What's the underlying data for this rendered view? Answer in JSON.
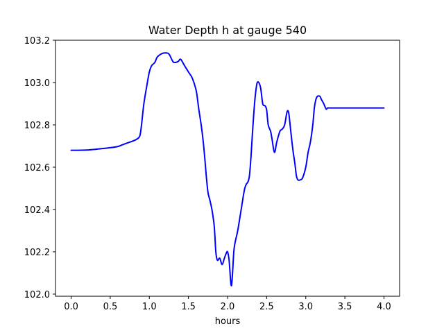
{
  "chart_data": {
    "type": "line",
    "title": "Water Depth h at gauge 540",
    "xlabel": "hours",
    "ylabel": "",
    "xlim": [
      -0.2,
      4.2
    ],
    "ylim": [
      101.99,
      103.2
    ],
    "xticks": [
      0.0,
      0.5,
      1.0,
      1.5,
      2.0,
      2.5,
      3.0,
      3.5,
      4.0
    ],
    "xtick_labels": [
      "0.0",
      "0.5",
      "1.0",
      "1.5",
      "2.0",
      "2.5",
      "3.0",
      "3.5",
      "4.0"
    ],
    "yticks": [
      102.0,
      102.2,
      102.4,
      102.6,
      102.8,
      103.0,
      103.2
    ],
    "ytick_labels": [
      "102.0",
      "102.2",
      "102.4",
      "102.6",
      "102.8",
      "103.0",
      "103.2"
    ],
    "grid": false,
    "legend": "none",
    "series": [
      {
        "color": "#0000ff",
        "x": [
          0.0,
          0.1,
          0.2,
          0.3,
          0.4,
          0.5,
          0.6,
          0.65,
          0.7,
          0.8,
          0.85,
          0.88,
          0.9,
          0.93,
          0.97,
          1.0,
          1.03,
          1.07,
          1.1,
          1.15,
          1.2,
          1.25,
          1.3,
          1.33,
          1.37,
          1.4,
          1.45,
          1.5,
          1.55,
          1.6,
          1.63,
          1.67,
          1.7,
          1.73,
          1.75,
          1.77,
          1.8,
          1.83,
          1.85,
          1.87,
          1.9,
          1.93,
          1.96,
          1.98,
          2.0,
          2.02,
          2.05,
          2.08,
          2.1,
          2.13,
          2.17,
          2.2,
          2.22,
          2.24,
          2.26,
          2.28,
          2.3,
          2.32,
          2.35,
          2.38,
          2.42,
          2.45,
          2.48,
          2.5,
          2.52,
          2.55,
          2.57,
          2.6,
          2.63,
          2.67,
          2.7,
          2.73,
          2.76,
          2.78,
          2.8,
          2.82,
          2.84,
          2.86,
          2.88,
          2.9,
          2.93,
          2.96,
          3.0,
          3.03,
          3.06,
          3.09,
          3.11,
          3.13,
          3.15,
          3.18,
          3.2,
          3.23,
          3.26,
          3.28,
          3.3,
          3.32,
          3.35,
          3.38,
          3.42,
          3.46,
          3.5,
          3.53,
          3.56,
          3.6,
          3.63,
          3.66,
          3.7,
          3.75,
          3.8,
          3.84,
          3.87,
          3.9,
          3.93,
          3.96,
          3.98,
          4.0
        ],
        "y": [
          102.68,
          102.68,
          102.681,
          102.684,
          102.688,
          102.692,
          102.698,
          102.705,
          102.712,
          102.725,
          102.735,
          102.75,
          102.8,
          102.9,
          102.99,
          103.05,
          103.08,
          103.095,
          103.12,
          103.135,
          103.14,
          103.135,
          103.1,
          103.095,
          103.1,
          103.11,
          103.08,
          103.05,
          103.02,
          102.96,
          102.88,
          102.78,
          102.68,
          102.55,
          102.48,
          102.45,
          102.4,
          102.32,
          102.2,
          102.16,
          102.17,
          102.14,
          102.17,
          102.19,
          102.2,
          102.16,
          102.04,
          102.2,
          102.25,
          102.3,
          102.39,
          102.46,
          102.5,
          102.52,
          102.53,
          102.56,
          102.65,
          102.77,
          102.92,
          103.0,
          102.98,
          102.9,
          102.89,
          102.87,
          102.8,
          102.77,
          102.73,
          102.67,
          102.72,
          102.77,
          102.78,
          102.8,
          102.86,
          102.86,
          102.8,
          102.73,
          102.67,
          102.62,
          102.56,
          102.54,
          102.54,
          102.55,
          102.6,
          102.67,
          102.72,
          102.8,
          102.88,
          102.92,
          102.935,
          102.935,
          102.92,
          102.9,
          102.875,
          102.88,
          102.88,
          102.88,
          102.88,
          102.88,
          102.88,
          102.88,
          102.88,
          102.88,
          102.88,
          102.88,
          102.88,
          102.88,
          102.88,
          102.88,
          102.88,
          102.88,
          102.88,
          102.88,
          102.88,
          102.88,
          102.88,
          102.88
        ]
      }
    ]
  }
}
